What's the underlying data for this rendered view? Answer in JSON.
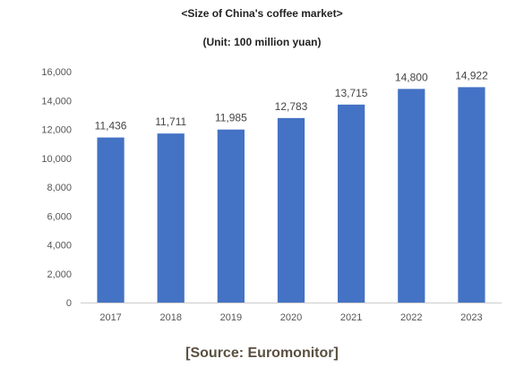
{
  "chart_data": {
    "type": "bar",
    "title": "<Size of China's coffee market>",
    "subtitle": "(Unit: 100 million yuan)",
    "categories": [
      "2017",
      "2018",
      "2019",
      "2020",
      "2021",
      "2022",
      "2023"
    ],
    "values": [
      11436,
      11711,
      11985,
      12783,
      13715,
      14800,
      14922
    ],
    "value_labels": [
      "11,436",
      "11,711",
      "11,985",
      "12,783",
      "13,715",
      "14,800",
      "14,922"
    ],
    "yticks": [
      "0",
      "2,000",
      "4,000",
      "6,000",
      "8,000",
      "10,000",
      "12,000",
      "14,000",
      "16,000"
    ],
    "ylim": [
      0,
      16000
    ],
    "bar_color": "#4472C4",
    "grid": false,
    "legend": "none"
  },
  "source": "[Source: Euromonitor]"
}
